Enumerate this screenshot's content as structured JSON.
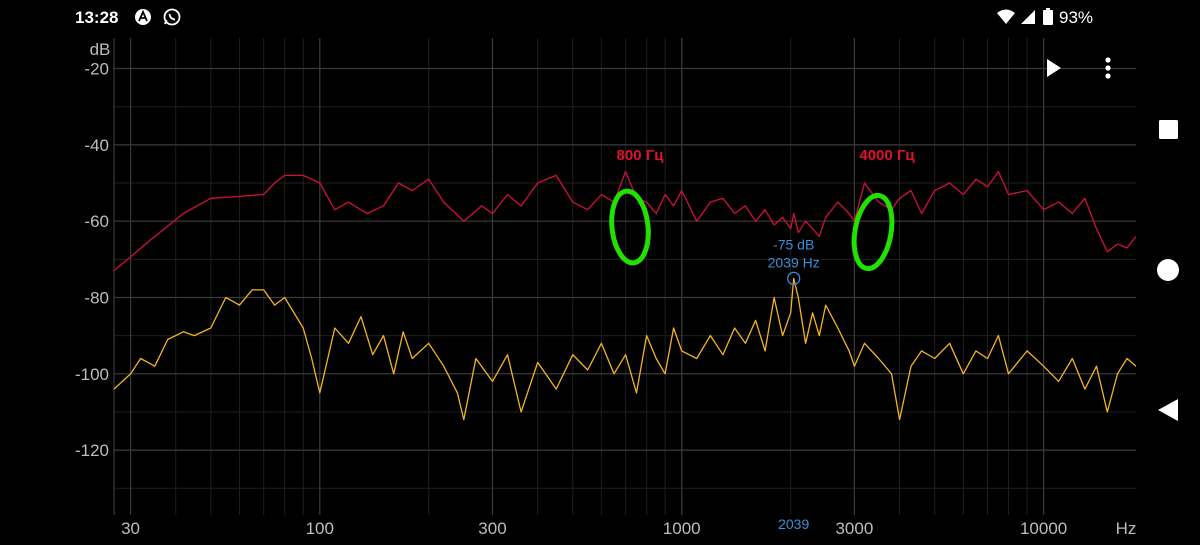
{
  "status_bar": {
    "time": "13:28",
    "battery": "93%",
    "icons": [
      "notification-a-icon",
      "whatsapp-icon",
      "wifi-icon",
      "signal-icon",
      "battery-icon"
    ]
  },
  "toolbar": {
    "icons": [
      "play-icon",
      "more-vertical-icon"
    ]
  },
  "navigation": {
    "icons": [
      "recents-square-icon",
      "home-circle-icon",
      "back-triangle-icon"
    ]
  },
  "annotations": {
    "label_800": "800 Гц",
    "label_4000": "4000 Гц"
  },
  "cursor": {
    "db_label": "-75 dB",
    "hz_label": "2039 Hz",
    "axis_label": "2039",
    "freq": 2039,
    "db": -75
  },
  "colors": {
    "background": "#000000",
    "grid": "#3a3a3a",
    "grid_minor": "#1f1f1f",
    "axis_text": "#bdbdbd",
    "red_series": "#d0103a",
    "yellow_series": "#f2b51f",
    "annotation_text": "#e3102c",
    "annotation_circle": "#22e000",
    "cursor": "#3a8fd8"
  },
  "chart_data": {
    "type": "line",
    "x_scale": "log",
    "xlim": [
      27,
      18000
    ],
    "ylim": [
      -137,
      -12
    ],
    "ylabel": "dB",
    "xlabel": "Hz",
    "x_ticks": [
      {
        "value": 30,
        "label": "30"
      },
      {
        "value": 100,
        "label": "100"
      },
      {
        "value": 300,
        "label": "300"
      },
      {
        "value": 1000,
        "label": "1000"
      },
      {
        "value": 3000,
        "label": "3000"
      },
      {
        "value": 10000,
        "label": "10000"
      }
    ],
    "y_ticks": [
      {
        "value": -20,
        "label": "-20"
      },
      {
        "value": -40,
        "label": "-40"
      },
      {
        "value": -60,
        "label": "-60"
      },
      {
        "value": -80,
        "label": "-80"
      },
      {
        "value": -100,
        "label": "-100"
      },
      {
        "value": -120,
        "label": "-120"
      }
    ],
    "series": [
      {
        "color": "#d0103a",
        "points": [
          [
            27,
            -73
          ],
          [
            34,
            -65
          ],
          [
            42,
            -58
          ],
          [
            50,
            -54
          ],
          [
            60,
            -53.5
          ],
          [
            70,
            -53
          ],
          [
            75,
            -50
          ],
          [
            80,
            -48
          ],
          [
            90,
            -48
          ],
          [
            100,
            -50
          ],
          [
            110,
            -57
          ],
          [
            120,
            -55
          ],
          [
            135,
            -58
          ],
          [
            150,
            -56
          ],
          [
            165,
            -50
          ],
          [
            180,
            -52
          ],
          [
            200,
            -49
          ],
          [
            220,
            -55
          ],
          [
            250,
            -60
          ],
          [
            280,
            -56
          ],
          [
            300,
            -58
          ],
          [
            330,
            -53
          ],
          [
            360,
            -56
          ],
          [
            400,
            -50
          ],
          [
            450,
            -48
          ],
          [
            500,
            -55
          ],
          [
            550,
            -57
          ],
          [
            600,
            -53
          ],
          [
            650,
            -55
          ],
          [
            700,
            -47
          ],
          [
            750,
            -54
          ],
          [
            800,
            -55
          ],
          [
            850,
            -58
          ],
          [
            900,
            -53
          ],
          [
            950,
            -56
          ],
          [
            1000,
            -52
          ],
          [
            1100,
            -60
          ],
          [
            1200,
            -55
          ],
          [
            1300,
            -54
          ],
          [
            1400,
            -58
          ],
          [
            1500,
            -56
          ],
          [
            1600,
            -60
          ],
          [
            1700,
            -57
          ],
          [
            1800,
            -61
          ],
          [
            1900,
            -59
          ],
          [
            2000,
            -62
          ],
          [
            2039,
            -58
          ],
          [
            2100,
            -63
          ],
          [
            2200,
            -60
          ],
          [
            2300,
            -62
          ],
          [
            2400,
            -64
          ],
          [
            2500,
            -59
          ],
          [
            2700,
            -55
          ],
          [
            2900,
            -58
          ],
          [
            3000,
            -60
          ],
          [
            3200,
            -50
          ],
          [
            3500,
            -55
          ],
          [
            3800,
            -57
          ],
          [
            4000,
            -54
          ],
          [
            4300,
            -52
          ],
          [
            4600,
            -58
          ],
          [
            5000,
            -52
          ],
          [
            5500,
            -50
          ],
          [
            6000,
            -53
          ],
          [
            6500,
            -49
          ],
          [
            7000,
            -51
          ],
          [
            7500,
            -47
          ],
          [
            8000,
            -53
          ],
          [
            9000,
            -52
          ],
          [
            10000,
            -57
          ],
          [
            11000,
            -55
          ],
          [
            12000,
            -58
          ],
          [
            13000,
            -54
          ],
          [
            14000,
            -62
          ],
          [
            15000,
            -68
          ],
          [
            16000,
            -66
          ],
          [
            17000,
            -67
          ],
          [
            18000,
            -64
          ]
        ]
      },
      {
        "color": "#f2b51f",
        "points": [
          [
            27,
            -104
          ],
          [
            30,
            -100
          ],
          [
            32,
            -96
          ],
          [
            35,
            -98
          ],
          [
            38,
            -91
          ],
          [
            42,
            -89
          ],
          [
            45,
            -90
          ],
          [
            50,
            -88
          ],
          [
            55,
            -80
          ],
          [
            60,
            -82
          ],
          [
            65,
            -78
          ],
          [
            70,
            -78
          ],
          [
            75,
            -82
          ],
          [
            80,
            -80
          ],
          [
            90,
            -88
          ],
          [
            95,
            -96
          ],
          [
            100,
            -105
          ],
          [
            110,
            -88
          ],
          [
            120,
            -92
          ],
          [
            130,
            -85
          ],
          [
            140,
            -95
          ],
          [
            150,
            -90
          ],
          [
            160,
            -100
          ],
          [
            170,
            -89
          ],
          [
            180,
            -96
          ],
          [
            200,
            -92
          ],
          [
            220,
            -98
          ],
          [
            240,
            -105
          ],
          [
            250,
            -112
          ],
          [
            270,
            -96
          ],
          [
            300,
            -102
          ],
          [
            330,
            -95
          ],
          [
            360,
            -110
          ],
          [
            400,
            -97
          ],
          [
            450,
            -104
          ],
          [
            500,
            -95
          ],
          [
            550,
            -99
          ],
          [
            600,
            -92
          ],
          [
            650,
            -100
          ],
          [
            700,
            -95
          ],
          [
            750,
            -105
          ],
          [
            800,
            -90
          ],
          [
            850,
            -96
          ],
          [
            900,
            -100
          ],
          [
            950,
            -88
          ],
          [
            1000,
            -94
          ],
          [
            1100,
            -96
          ],
          [
            1200,
            -90
          ],
          [
            1300,
            -95
          ],
          [
            1400,
            -88
          ],
          [
            1500,
            -92
          ],
          [
            1600,
            -86
          ],
          [
            1700,
            -94
          ],
          [
            1800,
            -80
          ],
          [
            1900,
            -90
          ],
          [
            2000,
            -84
          ],
          [
            2039,
            -75
          ],
          [
            2100,
            -80
          ],
          [
            2200,
            -92
          ],
          [
            2300,
            -84
          ],
          [
            2400,
            -90
          ],
          [
            2500,
            -82
          ],
          [
            2700,
            -88
          ],
          [
            2900,
            -94
          ],
          [
            3000,
            -98
          ],
          [
            3200,
            -92
          ],
          [
            3500,
            -96
          ],
          [
            3800,
            -100
          ],
          [
            4000,
            -112
          ],
          [
            4300,
            -98
          ],
          [
            4600,
            -94
          ],
          [
            5000,
            -96
          ],
          [
            5500,
            -92
          ],
          [
            6000,
            -100
          ],
          [
            6500,
            -94
          ],
          [
            7000,
            -96
          ],
          [
            7500,
            -90
          ],
          [
            8000,
            -100
          ],
          [
            9000,
            -94
          ],
          [
            10000,
            -98
          ],
          [
            11000,
            -102
          ],
          [
            12000,
            -96
          ],
          [
            13000,
            -104
          ],
          [
            14000,
            -98
          ],
          [
            15000,
            -110
          ],
          [
            16000,
            -100
          ],
          [
            17000,
            -96
          ],
          [
            18000,
            -98
          ]
        ]
      }
    ],
    "annotations": [
      {
        "text": "800 Гц",
        "x": 800,
        "y": -47
      },
      {
        "text": "4000 Гц",
        "x": 4000,
        "y": -47
      }
    ]
  }
}
